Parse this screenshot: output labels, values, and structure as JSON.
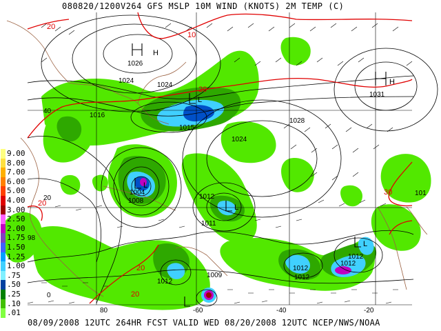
{
  "header": {
    "title": "080820/1200V264 GFS   MSLP 10M WIND (KNOTS) 2M TEMP (C)"
  },
  "footer": {
    "text": "08/09/2008 12UTC 264HR FCST VALID WED 08/20/2008 12UTC  NCEP/NWS/NOAA"
  },
  "legend": {
    "items": [
      {
        "label": "9.00",
        "color": "#ffff80"
      },
      {
        "label": "8.00",
        "color": "#ffe040"
      },
      {
        "label": "7.00",
        "color": "#ffb000"
      },
      {
        "label": "6.00",
        "color": "#ff8000"
      },
      {
        "label": "5.00",
        "color": "#ff4000"
      },
      {
        "label": "4.00",
        "color": "#e00000"
      },
      {
        "label": "3.00",
        "color": "#a00000"
      },
      {
        "label": "2.50",
        "color": "#ff60ff"
      },
      {
        "label": "2.00",
        "color": "#c000c0"
      },
      {
        "label": "1.75",
        "color": "#8040c0"
      },
      {
        "label": "1.50",
        "color": "#4060ff"
      },
      {
        "label": "1.25",
        "color": "#00a0ff"
      },
      {
        "label": "1.00",
        "color": "#40d0ff"
      },
      {
        "label": ".75",
        "color": "#80f0ff"
      },
      {
        "label": ".50",
        "color": "#0040a0"
      },
      {
        "label": ".25",
        "color": "#008000"
      },
      {
        "label": ".10",
        "color": "#40c000"
      },
      {
        "label": ".01",
        "color": "#80ff40"
      }
    ]
  },
  "pressure_centers": [
    {
      "type": "H",
      "label": "1026"
    },
    {
      "type": "H",
      "label": "1031"
    },
    {
      "type": "L",
      "label": "1015"
    },
    {
      "type": "L",
      "label": "1004"
    },
    {
      "type": "L",
      "label": "1011"
    },
    {
      "type": "L",
      "label": "1012"
    }
  ],
  "isobar_labels": [
    "1024",
    "1024",
    "1016",
    "1028",
    "1024",
    "1012",
    "1012",
    "1012",
    "1012",
    "1012",
    "1009",
    "1008"
  ],
  "temperature_labels": [
    "20",
    "10",
    "20",
    "20",
    "30",
    "20",
    "20"
  ],
  "grid_labels": {
    "lat": [
      "40",
      "20",
      "0"
    ],
    "lon": [
      "-60",
      "-40",
      "-20",
      "80"
    ]
  },
  "station_labels": [
    "101",
    "98"
  ]
}
